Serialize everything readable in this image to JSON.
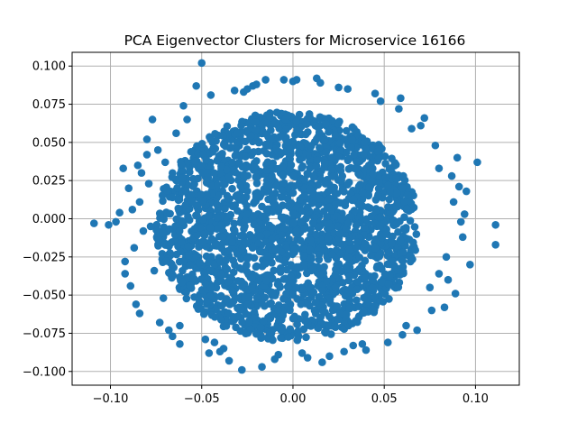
{
  "chart_data": {
    "type": "scatter",
    "title": "PCA Eigenvector Clusters for Microservice 16166",
    "xlabel": "",
    "ylabel": "",
    "xlim": [
      -0.121,
      0.124
    ],
    "ylim": [
      -0.109,
      0.109
    ],
    "x_ticks": [
      -0.1,
      -0.05,
      0.0,
      0.05,
      0.1
    ],
    "x_tick_labels": [
      "−0.10",
      "−0.05",
      "0.00",
      "0.05",
      "0.10"
    ],
    "y_ticks": [
      -0.1,
      -0.075,
      -0.05,
      -0.025,
      0.0,
      0.025,
      0.05,
      0.075,
      0.1
    ],
    "y_tick_labels": [
      "−0.100",
      "−0.075",
      "−0.050",
      "−0.025",
      "0.000",
      "0.025",
      "0.050",
      "0.075",
      "0.100"
    ],
    "grid": true,
    "marker_color": "#1f77b4",
    "points_x": [
      -0.109,
      -0.101,
      -0.097,
      -0.093,
      -0.09,
      -0.089,
      -0.086,
      -0.085,
      -0.084,
      -0.083,
      -0.082,
      -0.08,
      -0.079,
      -0.078,
      -0.077,
      -0.076,
      -0.073,
      -0.07,
      -0.068,
      -0.062,
      -0.06,
      -0.05,
      -0.053,
      -0.046,
      -0.043,
      -0.038,
      -0.035,
      -0.028,
      -0.027,
      -0.022,
      -0.017,
      -0.015,
      0.0,
      0.005,
      0.013,
      0.016,
      0.03,
      0.04,
      0.052,
      0.058,
      0.065,
      0.068,
      0.072,
      0.075,
      0.078,
      0.08,
      0.083,
      0.085,
      0.087,
      0.089,
      0.091,
      0.093,
      0.095,
      0.097,
      0.101,
      0.111,
      0.111,
      0.092,
      0.088,
      0.084,
      -0.092,
      -0.088,
      -0.084,
      -0.08,
      -0.074,
      -0.071,
      -0.066,
      -0.064,
      0.062,
      0.07,
      -0.095,
      -0.092,
      -0.087,
      0.08,
      0.076,
      0.094,
      0.09,
      -0.058,
      0.059,
      0.045,
      -0.04,
      0.033,
      -0.01,
      0.02,
      0.025,
      -0.02,
      0.008,
      -0.005,
      0.06,
      -0.062,
      -0.032,
      0.038,
      -0.045,
      0.048,
      -0.008,
      0.015,
      -0.025,
      0.028,
      0.002,
      -0.048
    ],
    "points_y": [
      -0.003,
      -0.004,
      -0.002,
      0.033,
      0.02,
      -0.044,
      -0.056,
      0.035,
      0.011,
      0.03,
      -0.008,
      0.042,
      0.023,
      -0.005,
      0.065,
      -0.034,
      -0.068,
      0.037,
      -0.073,
      -0.082,
      0.074,
      0.102,
      0.087,
      -0.088,
      -0.081,
      -0.085,
      -0.093,
      -0.099,
      0.083,
      0.087,
      -0.097,
      0.091,
      0.09,
      -0.088,
      0.092,
      -0.094,
      0.085,
      -0.086,
      -0.081,
      0.072,
      0.059,
      -0.073,
      0.066,
      -0.045,
      0.048,
      0.033,
      -0.058,
      -0.04,
      0.028,
      -0.049,
      0.021,
      -0.012,
      0.018,
      -0.03,
      0.037,
      -0.004,
      -0.017,
      -0.002,
      0.011,
      -0.025,
      -0.028,
      0.006,
      -0.062,
      0.052,
      0.045,
      -0.052,
      -0.077,
      0.056,
      -0.07,
      0.061,
      0.004,
      -0.036,
      -0.019,
      -0.036,
      -0.06,
      0.003,
      0.04,
      0.065,
      0.079,
      0.082,
      -0.087,
      -0.083,
      -0.092,
      -0.09,
      0.086,
      0.088,
      -0.091,
      0.091,
      -0.076,
      -0.07,
      0.084,
      -0.082,
      0.081,
      0.077,
      -0.089,
      0.089,
      0.085,
      -0.087,
      0.091,
      -0.079
    ],
    "dense_cluster": {
      "center": [
        -0.003,
        -0.005
      ],
      "radius_x": 0.072,
      "radius_y": 0.075,
      "count": 2200
    }
  }
}
